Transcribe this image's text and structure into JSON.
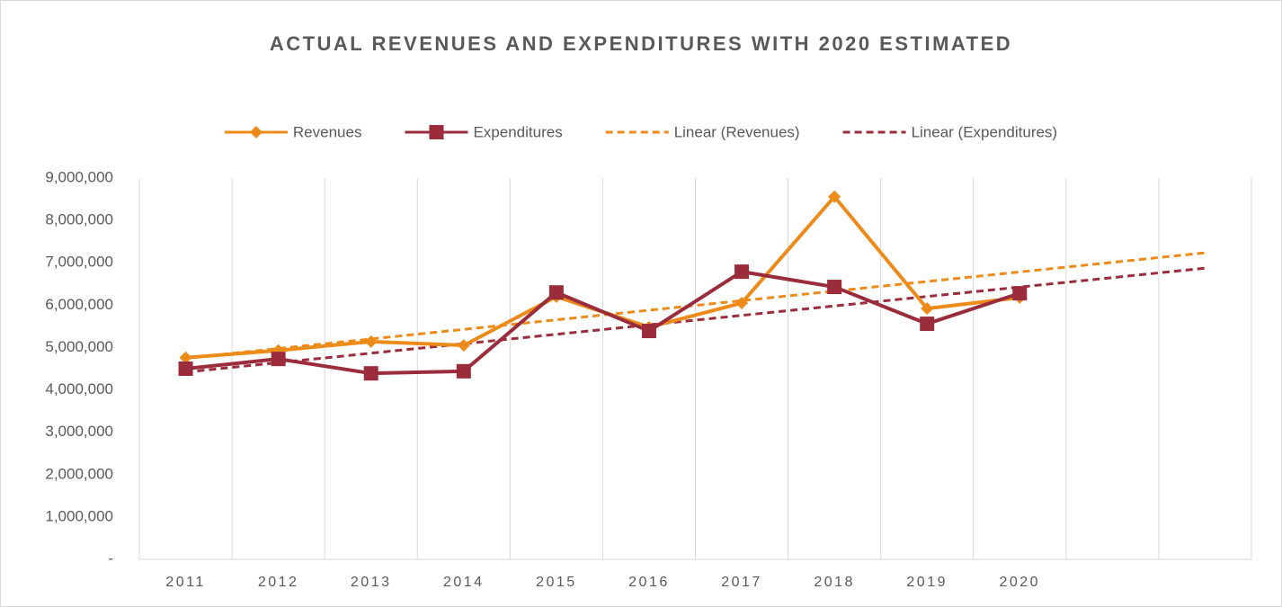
{
  "chart_data": {
    "type": "line",
    "title": "ACTUAL REVENUES AND EXPENDITURES WITH 2020 ESTIMATED",
    "categories": [
      "2011",
      "2012",
      "2013",
      "2014",
      "2015",
      "2016",
      "2017",
      "2018",
      "2019",
      "2020",
      null,
      null
    ],
    "series": [
      {
        "name": "Revenues",
        "color": "#ed8b1a",
        "line_style": "solid",
        "marker": "diamond",
        "values": [
          4760000,
          4930000,
          5140000,
          5050000,
          6200000,
          5480000,
          6050000,
          8560000,
          5920000,
          6180000,
          null,
          null
        ]
      },
      {
        "name": "Expenditures",
        "color": "#9b2c3c",
        "line_style": "solid",
        "marker": "square",
        "values": [
          4500000,
          4730000,
          4390000,
          4440000,
          6300000,
          5390000,
          6790000,
          6430000,
          5560000,
          6280000,
          null,
          null
        ]
      },
      {
        "name": "Linear (Revenues)",
        "color": "#ed8b1a",
        "line_style": "dashed",
        "marker": "none",
        "values": [
          4750000,
          4976000,
          5202000,
          5428000,
          5654000,
          5880000,
          6106000,
          6332000,
          6558000,
          6784000,
          7010000,
          7236000
        ]
      },
      {
        "name": "Linear (Expenditures)",
        "color": "#9b2c3c",
        "line_style": "dashed",
        "marker": "none",
        "values": [
          4420000,
          4643000,
          4866000,
          5089000,
          5312000,
          5535000,
          5758000,
          5981000,
          6204000,
          6427000,
          6650000,
          6873000
        ]
      }
    ],
    "ylim": [
      0,
      9000000
    ],
    "yticks": [
      {
        "value": 0,
        "label": "-"
      },
      {
        "value": 1000000,
        "label": "1,000,000"
      },
      {
        "value": 2000000,
        "label": "2,000,000"
      },
      {
        "value": 3000000,
        "label": "3,000,000"
      },
      {
        "value": 4000000,
        "label": "4,000,000"
      },
      {
        "value": 5000000,
        "label": "5,000,000"
      },
      {
        "value": 6000000,
        "label": "6,000,000"
      },
      {
        "value": 7000000,
        "label": "7,000,000"
      },
      {
        "value": 8000000,
        "label": "8,000,000"
      },
      {
        "value": 9000000,
        "label": "9,000,000"
      }
    ],
    "grid": "x",
    "legend": "top"
  }
}
